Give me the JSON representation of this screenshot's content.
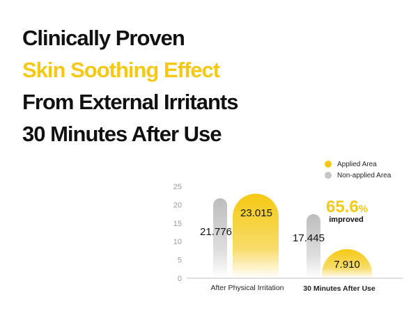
{
  "headline": {
    "line1": "Clinically Proven",
    "line2": "Skin Soothing Effect",
    "line3": "From External Irritants",
    "line4": "30 Minutes After Use"
  },
  "colors": {
    "accent": "#f5c913",
    "gray": "#c6c6c6",
    "text": "#111111"
  },
  "chart_data": {
    "type": "bar",
    "categories": [
      "After Physical Irritation",
      "30 Minutes After Use"
    ],
    "series": [
      {
        "name": "Non-applied Area",
        "values": [
          21.776,
          17.445
        ],
        "labels": [
          "21.776",
          "17.445"
        ],
        "color": "#c6c6c6"
      },
      {
        "name": "Applied Area",
        "values": [
          23.015,
          7.91
        ],
        "labels": [
          "23.015",
          "7.910"
        ],
        "color": "#f5c913"
      }
    ],
    "yticks": [
      "25",
      "20",
      "15",
      "10",
      "5",
      "0"
    ],
    "ylim": [
      0,
      25
    ],
    "annotation": {
      "value": "65.6",
      "unit": "%",
      "text": "improved"
    },
    "legend": {
      "position": "top-right"
    }
  }
}
